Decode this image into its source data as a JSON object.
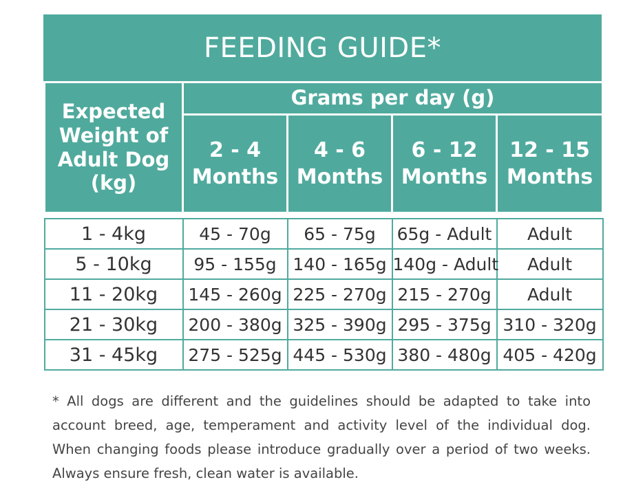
{
  "title": "FEEDING GUIDE*",
  "header": {
    "weight_col": [
      "Expected",
      "Weight of",
      "Adult Dog",
      "(kg)"
    ],
    "grams_label": "Grams per day (g)",
    "months": [
      {
        "range": "2 - 4",
        "unit": "Months"
      },
      {
        "range": "4 - 6",
        "unit": "Months"
      },
      {
        "range": "6 - 12",
        "unit": "Months"
      },
      {
        "range": "12 - 15",
        "unit": "Months"
      }
    ]
  },
  "rows": [
    {
      "weight": "1 - 4kg",
      "values": [
        "45 - 70g",
        "65 - 75g",
        "65g - Adult",
        "Adult"
      ]
    },
    {
      "weight": "5 - 10kg",
      "values": [
        "95 - 155g",
        "140 - 165g",
        "140g - Adult",
        "Adult"
      ]
    },
    {
      "weight": "11 - 20kg",
      "values": [
        "145 - 260g",
        "225 - 270g",
        "215 - 270g",
        "Adult"
      ]
    },
    {
      "weight": "21 - 30kg",
      "values": [
        "200 - 380g",
        "325 - 390g",
        "295 - 375g",
        "310 - 320g"
      ]
    },
    {
      "weight": "31 - 45kg",
      "values": [
        "275 - 525g",
        "445 - 530g",
        "380 - 480g",
        "405 - 420g"
      ]
    }
  ],
  "footnote": [
    "* All dogs are different and the guidelines should be adapted to take into",
    "account breed, age, temperament and activity level of the individual dog.",
    "When changing foods please introduce gradually over a period of two weeks.",
    "Always ensure fresh, clean water is available."
  ]
}
